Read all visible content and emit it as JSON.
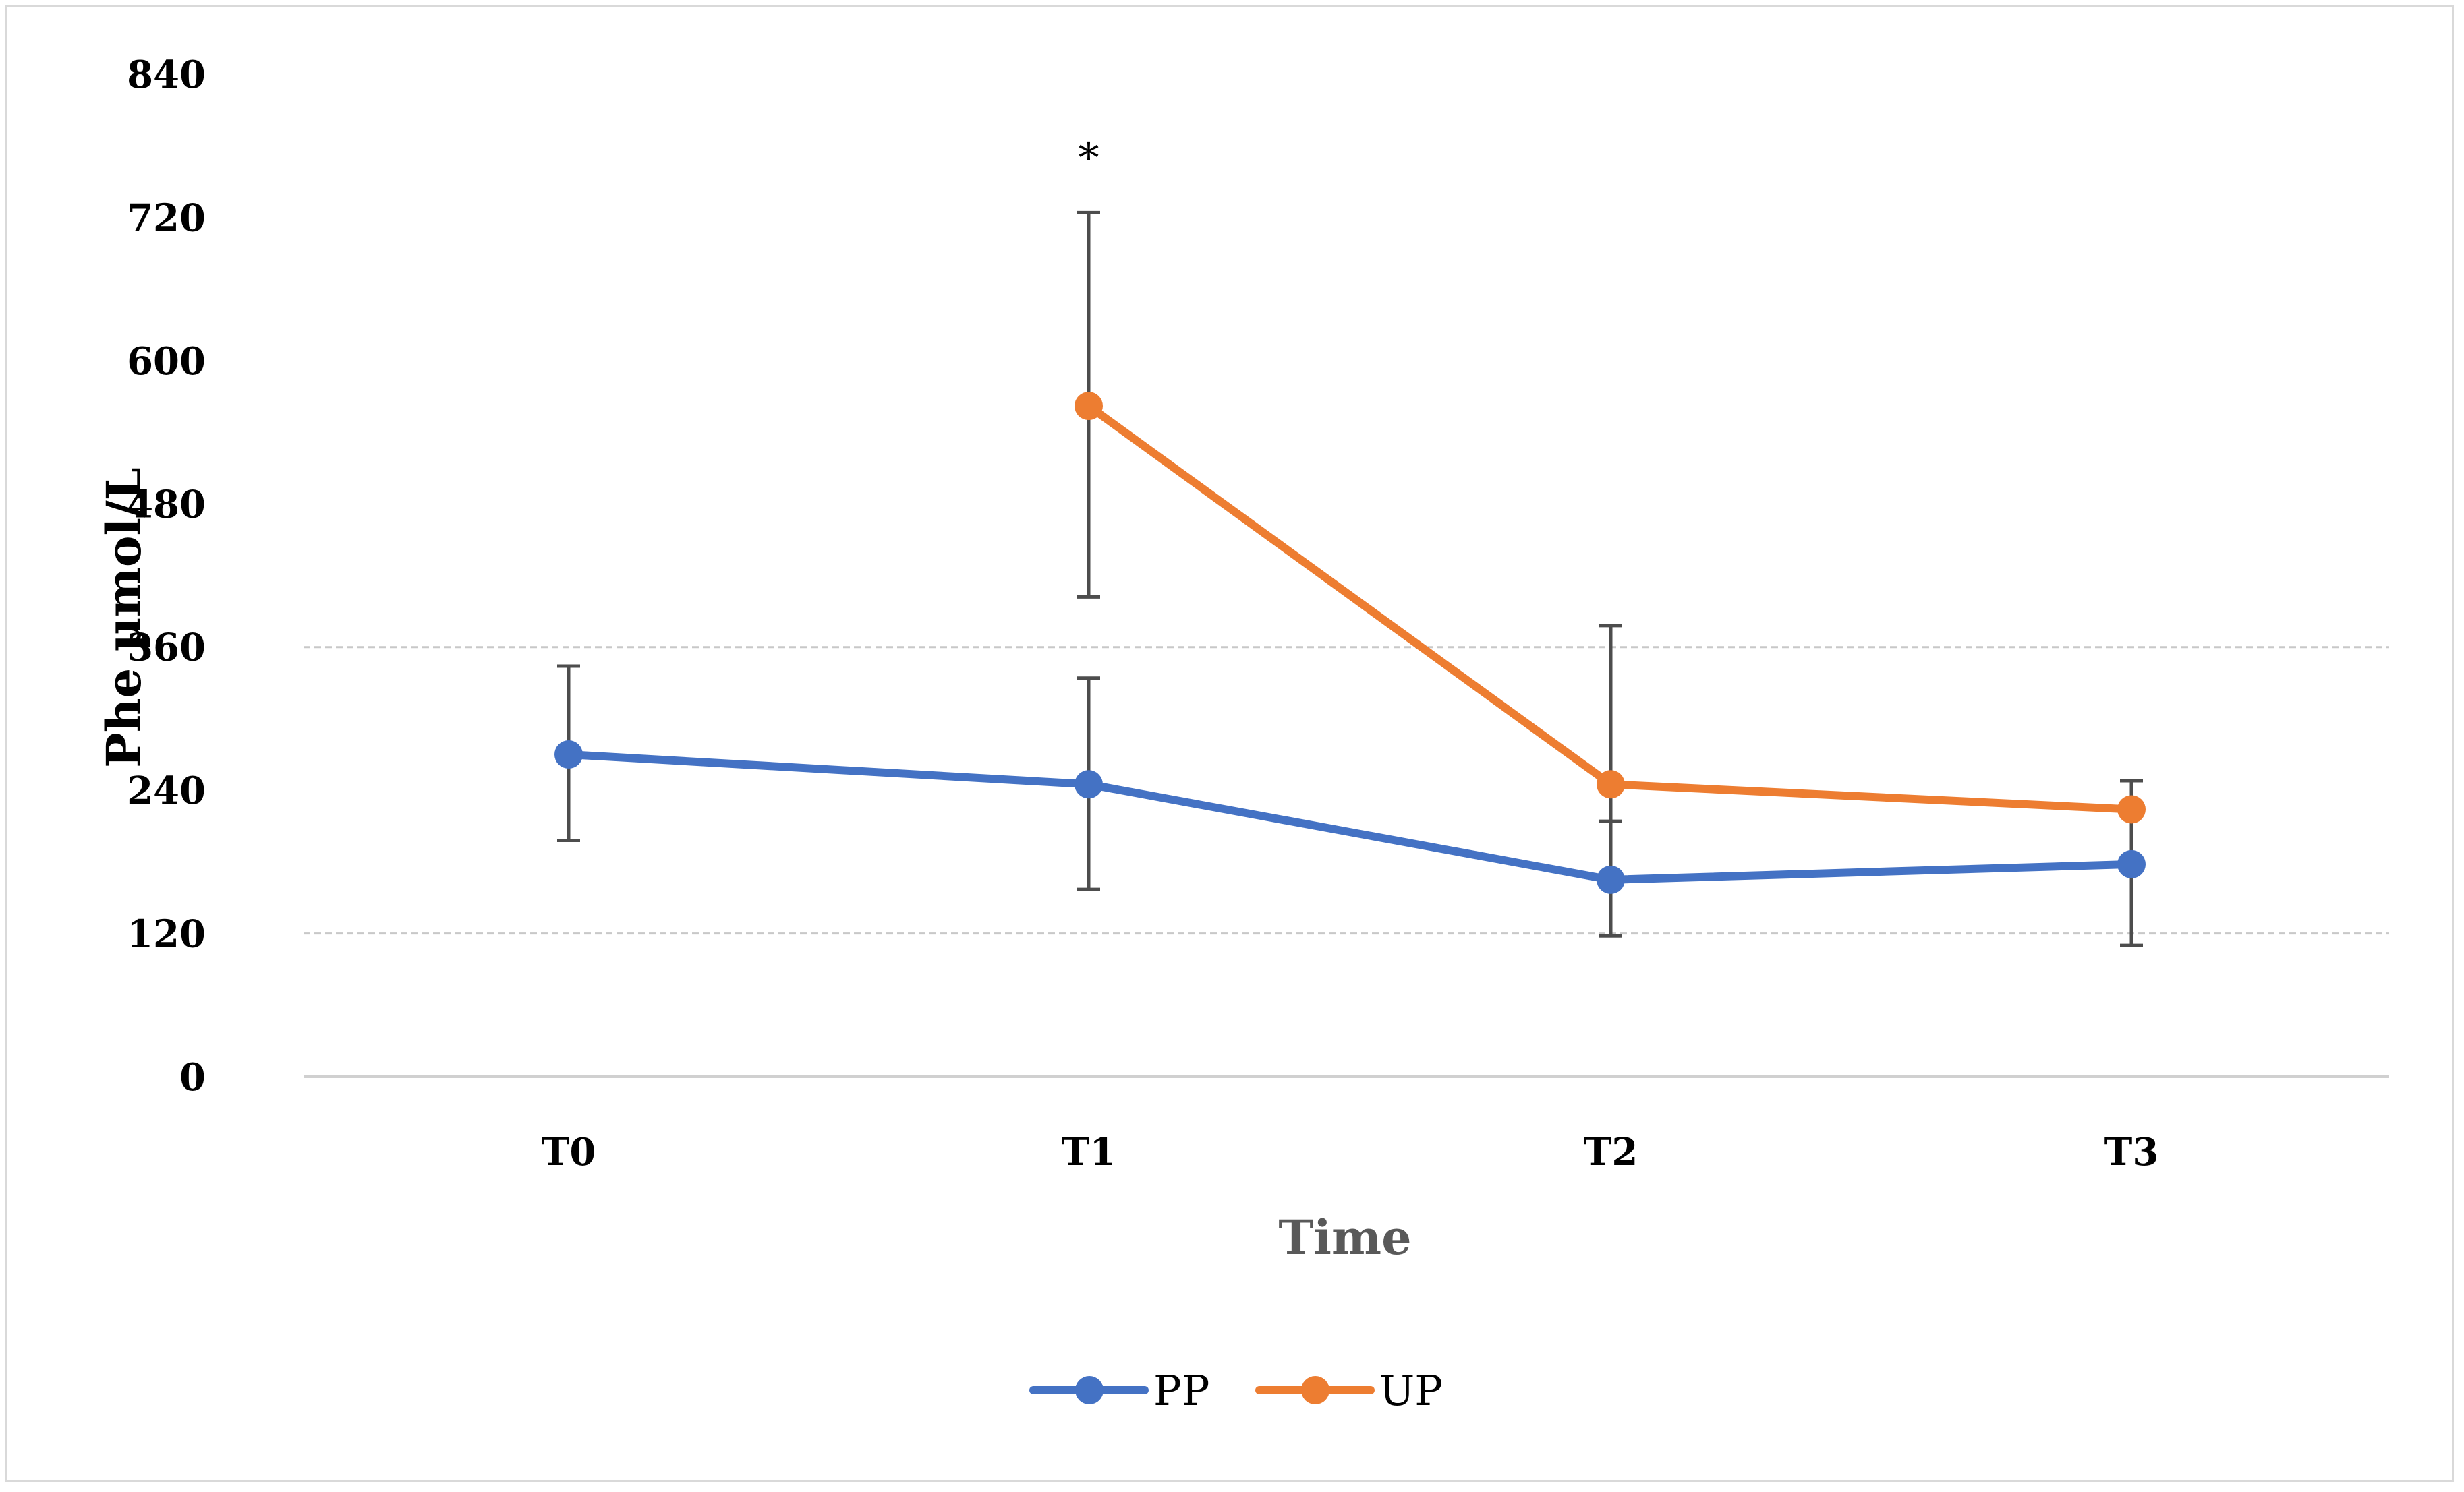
{
  "chart_data": {
    "type": "line",
    "title": "",
    "xlabel": "Time",
    "ylabel": "Phe μmol/L",
    "categories": [
      "T0",
      "T1",
      "T2",
      "T3"
    ],
    "ylim": [
      0,
      840
    ],
    "yticks": [
      0,
      120,
      240,
      360,
      480,
      600,
      720,
      840
    ],
    "yticks_labels": [
      "0",
      "120",
      "240",
      "360",
      "480",
      "600",
      "720",
      "840"
    ],
    "reference_lines": [
      120,
      360
    ],
    "series": [
      {
        "name": "PP",
        "color": "#4472C4",
        "values": [
          270,
          245,
          165,
          178
        ],
        "error_low": [
          198,
          157,
          118,
          110
        ],
        "error_high": [
          344,
          334,
          214,
          248
        ]
      },
      {
        "name": "UP",
        "color": "#ED7D31",
        "values": [
          null,
          562,
          245,
          224
        ],
        "error_low": [
          null,
          402,
          118,
          110
        ],
        "error_high": [
          null,
          724,
          378,
          248
        ]
      }
    ],
    "annotations": [
      {
        "category": "T1",
        "y": 780,
        "text": "*"
      }
    ],
    "legend": {
      "position": "bottom"
    }
  }
}
